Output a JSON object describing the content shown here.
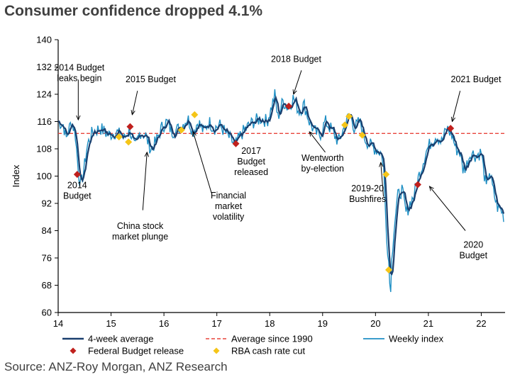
{
  "chart_data": {
    "type": "line",
    "title": "Consumer confidence dropped 4.1%",
    "source": "Source: ANZ-Roy Morgan, ANZ Research",
    "ylabel": "Index",
    "ylim": [
      60,
      140
    ],
    "yticks": [
      60,
      68,
      76,
      84,
      92,
      100,
      108,
      116,
      124,
      132,
      140
    ],
    "xlim": [
      14,
      22.45
    ],
    "xticks": [
      14,
      15,
      16,
      17,
      18,
      19,
      20,
      21,
      22
    ],
    "xtick_labels": [
      "14",
      "15",
      "16",
      "17",
      "18",
      "19",
      "20",
      "21",
      "22"
    ],
    "grid": false,
    "average_since_1990": 112.5,
    "colors": {
      "weekly": "#1f8fc4",
      "four_week": "#1a3f6e",
      "average": "#e8453c",
      "budget": "#c0201d",
      "rba": "#f5c518",
      "text": "#404040"
    },
    "weekly_anchors": [
      [
        14.0,
        116
      ],
      [
        14.1,
        115
      ],
      [
        14.15,
        111
      ],
      [
        14.25,
        116
      ],
      [
        14.32,
        113
      ],
      [
        14.38,
        102
      ],
      [
        14.42,
        97
      ],
      [
        14.48,
        101
      ],
      [
        14.55,
        109
      ],
      [
        14.65,
        113
      ],
      [
        14.8,
        114
      ],
      [
        14.95,
        112
      ],
      [
        15.1,
        113
      ],
      [
        15.25,
        111
      ],
      [
        15.35,
        114
      ],
      [
        15.45,
        108
      ],
      [
        15.55,
        113
      ],
      [
        15.65,
        112
      ],
      [
        15.75,
        108
      ],
      [
        15.85,
        110
      ],
      [
        15.95,
        114
      ],
      [
        16.05,
        116
      ],
      [
        16.15,
        113
      ],
      [
        16.3,
        114
      ],
      [
        16.45,
        117
      ],
      [
        16.55,
        113
      ],
      [
        16.65,
        116
      ],
      [
        16.75,
        113
      ],
      [
        16.85,
        116
      ],
      [
        16.95,
        114
      ],
      [
        17.05,
        115
      ],
      [
        17.15,
        113
      ],
      [
        17.25,
        111
      ],
      [
        17.35,
        109
      ],
      [
        17.45,
        112
      ],
      [
        17.55,
        114
      ],
      [
        17.7,
        116
      ],
      [
        17.85,
        117
      ],
      [
        17.95,
        116
      ],
      [
        18.05,
        121
      ],
      [
        18.1,
        124
      ],
      [
        18.15,
        117
      ],
      [
        18.25,
        122
      ],
      [
        18.35,
        120
      ],
      [
        18.45,
        123
      ],
      [
        18.55,
        119
      ],
      [
        18.65,
        121
      ],
      [
        18.75,
        116
      ],
      [
        18.85,
        113
      ],
      [
        18.95,
        112
      ],
      [
        19.05,
        116
      ],
      [
        19.15,
        114
      ],
      [
        19.3,
        110
      ],
      [
        19.4,
        114
      ],
      [
        19.5,
        118
      ],
      [
        19.55,
        117
      ],
      [
        19.6,
        114
      ],
      [
        19.7,
        116
      ],
      [
        19.8,
        111
      ],
      [
        19.9,
        109
      ],
      [
        20.0,
        108
      ],
      [
        20.1,
        107
      ],
      [
        20.15,
        104
      ],
      [
        20.2,
        85
      ],
      [
        20.25,
        75
      ],
      [
        20.28,
        65
      ],
      [
        20.31,
        76
      ],
      [
        20.35,
        85
      ],
      [
        20.42,
        94
      ],
      [
        20.5,
        96
      ],
      [
        20.58,
        89
      ],
      [
        20.65,
        92
      ],
      [
        20.72,
        94
      ],
      [
        20.8,
        99
      ],
      [
        20.88,
        103
      ],
      [
        20.95,
        107
      ],
      [
        21.05,
        110
      ],
      [
        21.15,
        112
      ],
      [
        21.25,
        110
      ],
      [
        21.35,
        114
      ],
      [
        21.45,
        112
      ],
      [
        21.52,
        108
      ],
      [
        21.6,
        107
      ],
      [
        21.65,
        102
      ],
      [
        21.72,
        103
      ],
      [
        21.8,
        107
      ],
      [
        21.9,
        106
      ],
      [
        22.0,
        107
      ],
      [
        22.05,
        101
      ],
      [
        22.1,
        96
      ],
      [
        22.15,
        102
      ],
      [
        22.22,
        96
      ],
      [
        22.3,
        91
      ],
      [
        22.38,
        90
      ],
      [
        22.43,
        88
      ]
    ],
    "federal_budget_release": [
      [
        14.36,
        100.5
      ],
      [
        15.36,
        114.5
      ],
      [
        17.36,
        109.5
      ],
      [
        18.36,
        120.5
      ],
      [
        20.8,
        97.5
      ],
      [
        21.42,
        114
      ]
    ],
    "rba_cash_rate_cut": [
      [
        15.15,
        111.5
      ],
      [
        15.33,
        110
      ],
      [
        16.33,
        113.5
      ],
      [
        16.58,
        118
      ],
      [
        19.42,
        115
      ],
      [
        19.5,
        117.5
      ],
      [
        19.75,
        112
      ],
      [
        20.2,
        100.5
      ],
      [
        20.25,
        72.5
      ]
    ],
    "annotations": [
      {
        "lines": [
          "2014 Budget",
          "leaks begin"
        ],
        "x": 14.4,
        "y": 131,
        "arrow": [
          14.38,
          128.3,
          14.38,
          116.5
        ]
      },
      {
        "lines": [
          "2015 Budget"
        ],
        "x": 15.75,
        "y": 127.5,
        "arrow": [
          15.5,
          125,
          15.4,
          118
        ]
      },
      {
        "lines": [
          "2018 Budget"
        ],
        "x": 18.5,
        "y": 133.5,
        "arrow": [
          18.6,
          131,
          18.45,
          124
        ]
      },
      {
        "lines": [
          "2021 Budget"
        ],
        "x": 21.9,
        "y": 127.5,
        "arrow": [
          21.6,
          125,
          21.45,
          116
        ]
      },
      {
        "lines": [
          "2014",
          "Budget"
        ],
        "x": 14.36,
        "y": 96.5
      },
      {
        "lines": [
          "China stock",
          "market plunge"
        ],
        "x": 15.55,
        "y": 84.5,
        "arrow": [
          15.6,
          90,
          15.68,
          107
        ]
      },
      {
        "lines": [
          "Financial",
          "market",
          "volatility"
        ],
        "x": 17.22,
        "y": 93.5,
        "arrow": [
          16.9,
          95,
          16.55,
          113
        ]
      },
      {
        "lines": [
          "2017",
          "Budget",
          "released"
        ],
        "x": 17.65,
        "y": 106.5
      },
      {
        "lines": [
          "Wentworth",
          "by-election"
        ],
        "x": 19.0,
        "y": 104.5,
        "arrow": [
          19.05,
          107,
          18.75,
          113
        ]
      },
      {
        "lines": [
          "2019-20",
          "Bushfires"
        ],
        "x": 19.85,
        "y": 95.5,
        "arrow": [
          20.15,
          94,
          20.1,
          104
        ]
      },
      {
        "lines": [
          "2020",
          "Budget"
        ],
        "x": 21.85,
        "y": 79,
        "arrow": [
          21.7,
          84,
          21.02,
          97
        ]
      }
    ],
    "legend": [
      {
        "label": "4-week average",
        "kind": "line",
        "color": "#1a3f6e"
      },
      {
        "label": "Average since 1990",
        "kind": "dash",
        "color": "#e8453c"
      },
      {
        "label": "Weekly index",
        "kind": "line",
        "color": "#1f8fc4"
      },
      {
        "label": "Federal Budget release",
        "kind": "diamond",
        "color": "#c0201d"
      },
      {
        "label": "RBA cash rate cut",
        "kind": "diamond",
        "color": "#f5c518"
      }
    ]
  }
}
